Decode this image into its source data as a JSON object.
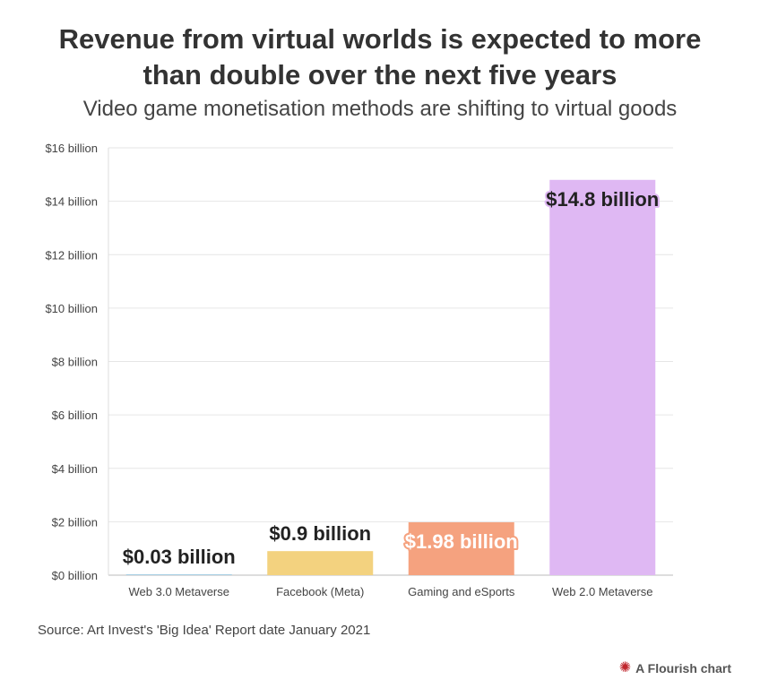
{
  "header": {
    "title_line1": "Revenue from virtual worlds is expected to more",
    "title_line2": "than double over the next five years",
    "subtitle": "Video game monetisation methods are shifting to virtual goods"
  },
  "chart_data": {
    "type": "bar",
    "categories": [
      "Web 3.0 Metaverse",
      "Facebook (Meta)",
      "Gaming and eSports",
      "Web 2.0 Metaverse"
    ],
    "values": [
      0.03,
      0.9,
      1.98,
      14.8
    ],
    "data_labels": [
      "$0.03 billion",
      "$0.9 billion",
      "$1.98 billion",
      "$14.8 billion"
    ],
    "colors": [
      "#a6cee3",
      "#f3d27f",
      "#f5a27f",
      "#dfb8f3"
    ],
    "yticks": [
      0,
      2,
      4,
      6,
      8,
      10,
      12,
      14,
      16
    ],
    "ytick_labels": [
      "$0 billion",
      "$2 billion",
      "$4 billion",
      "$6 billion",
      "$8 billion",
      "$10 billion",
      "$12 billion",
      "$14 billion",
      "$16 billion"
    ],
    "ylim": [
      0,
      16
    ],
    "title": "Revenue from virtual worlds is expected to more than double over the next five years",
    "xlabel": "",
    "ylabel": "",
    "grid": true
  },
  "footer": {
    "source": "Source: Art Invest's 'Big Idea' Report date January 2021",
    "brand": "A Flourish chart",
    "brand_icon": "flourish-logo-icon"
  }
}
